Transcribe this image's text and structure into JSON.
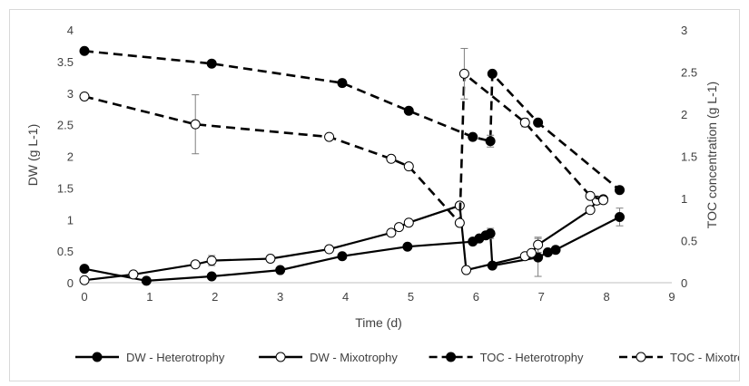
{
  "chart_data": {
    "type": "line",
    "title": "",
    "xlabel": "Time (d)",
    "ylabel": "DW (g L-1)",
    "y2label": "TOC concentration (g L-1)",
    "xlim": [
      0,
      9
    ],
    "ylim": [
      0,
      4
    ],
    "y2lim": [
      0,
      3
    ],
    "xticks": [
      "0",
      "1",
      "2",
      "3",
      "4",
      "5",
      "6",
      "7",
      "8",
      "9"
    ],
    "yticks": [
      "0",
      "0.5",
      "1",
      "1.5",
      "2",
      "2.5",
      "3",
      "3.5",
      "4"
    ],
    "y2ticks": [
      "0",
      "0.5",
      "1",
      "1.5",
      "2",
      "2.5",
      "3"
    ],
    "grid": false,
    "legend_position": "bottom",
    "series": [
      {
        "name": "DW - Heterotrophy",
        "axis": "left",
        "line": "solid",
        "marker": "filled-circle",
        "x": [
          0,
          0.95,
          1.95,
          3.0,
          3.95,
          4.95,
          5.95,
          6.05,
          6.15,
          6.22,
          6.25,
          6.95,
          7.1,
          7.22,
          8.2
        ],
        "y": [
          0.22,
          0.03,
          0.1,
          0.2,
          0.42,
          0.57,
          0.65,
          0.7,
          0.75,
          0.78,
          0.27,
          0.4,
          0.48,
          0.52,
          1.04
        ],
        "error": [
          0,
          0,
          0,
          0,
          0,
          0,
          0,
          0,
          0,
          0.08,
          0,
          0.3,
          0,
          0.05,
          0.14
        ]
      },
      {
        "name": "DW - Mixotrophy",
        "axis": "left",
        "line": "solid",
        "marker": "open-circle",
        "x": [
          0,
          0.75,
          1.7,
          1.95,
          2.85,
          3.75,
          4.7,
          4.82,
          4.97,
          5.75,
          5.85,
          6.75,
          6.85,
          6.95,
          7.75,
          7.85,
          7.95
        ],
        "y": [
          0.04,
          0.13,
          0.29,
          0.35,
          0.38,
          0.53,
          0.79,
          0.88,
          0.95,
          1.22,
          0.2,
          0.42,
          0.47,
          0.6,
          1.15,
          1.3,
          1.32
        ],
        "error": [
          0,
          0,
          0,
          0.08,
          0,
          0,
          0,
          0,
          0,
          0,
          0,
          0,
          0,
          0.12,
          0,
          0,
          0
        ]
      },
      {
        "name": "TOC - Heterotrophy",
        "axis": "right",
        "line": "dashed",
        "marker": "filled-circle",
        "x": [
          0,
          1.95,
          3.95,
          4.97,
          5.95,
          6.22,
          6.25,
          6.95,
          8.2
        ],
        "y": [
          2.75,
          2.6,
          2.37,
          2.04,
          1.73,
          1.68,
          2.48,
          1.9,
          1.1
        ],
        "error": [
          0,
          0.03,
          0.04,
          0,
          0,
          0.07,
          0,
          0,
          0
        ]
      },
      {
        "name": "TOC - Mixotrophy",
        "axis": "right",
        "line": "dashed",
        "marker": "open-circle",
        "x": [
          0,
          1.7,
          3.75,
          4.7,
          4.97,
          5.75,
          5.82,
          6.75,
          7.75,
          7.95
        ],
        "y": [
          2.21,
          1.88,
          1.73,
          1.47,
          1.38,
          0.71,
          2.48,
          1.9,
          1.03,
          0.98
        ],
        "error": [
          0,
          0.35,
          0,
          0,
          0,
          0,
          0.3,
          0.05,
          0,
          0
        ]
      }
    ]
  }
}
